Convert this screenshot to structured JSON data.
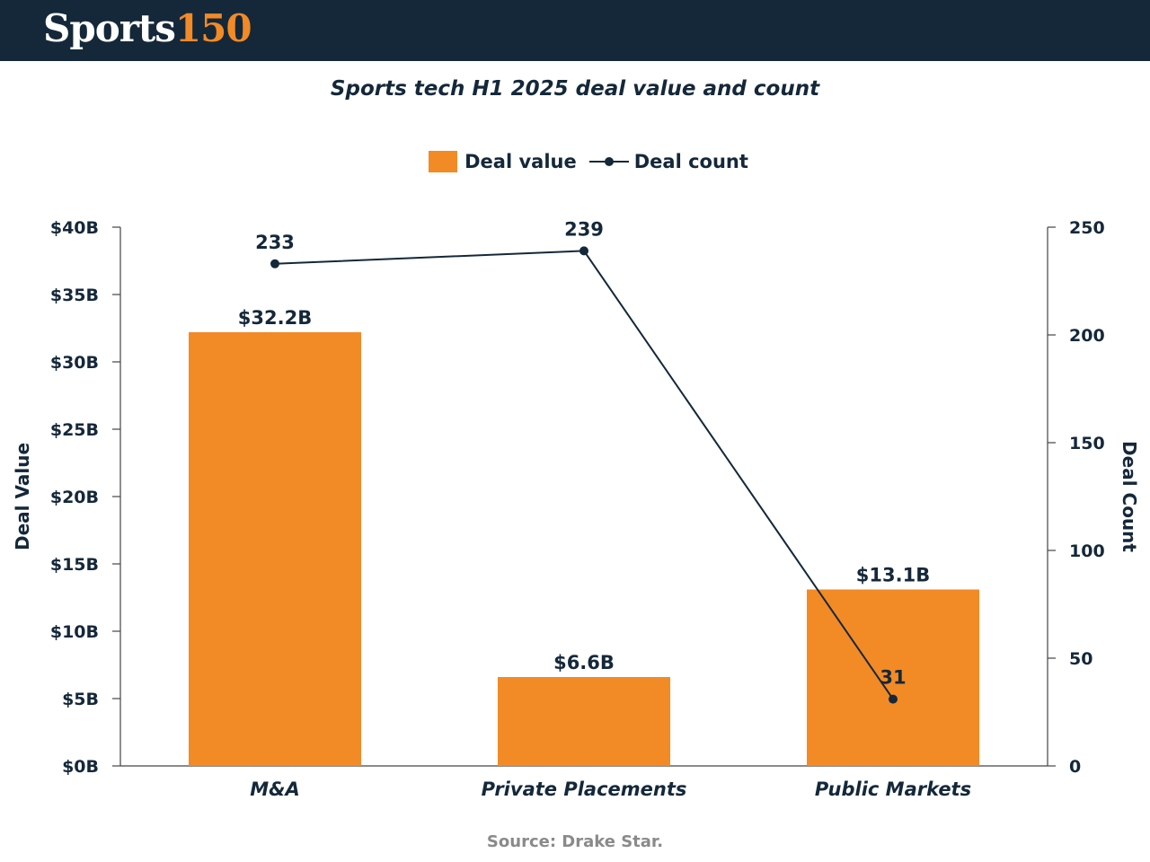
{
  "header": {
    "logo_word": "Sports",
    "logo_num": "150"
  },
  "title": "Sports tech H1 2025 deal value and count",
  "legend": {
    "bar": "Deal value",
    "line": "Deal count"
  },
  "source": "Source: Drake Star.",
  "colors": {
    "bar": "#f28a26",
    "line": "#14283a",
    "header_bg": "#14283a",
    "source_text": "#8a8a8a"
  },
  "chart_data": {
    "type": "bar",
    "categories": [
      "M&A",
      "Private Placements",
      "Public Markets"
    ],
    "series": [
      {
        "name": "Deal value",
        "type": "bar",
        "axis": "left",
        "values": [
          32.2,
          6.6,
          13.1
        ],
        "labels": [
          "$32.2B",
          "$6.6B",
          "$13.1B"
        ]
      },
      {
        "name": "Deal count",
        "type": "line",
        "axis": "right",
        "values": [
          233,
          239,
          31
        ],
        "labels": [
          "233",
          "239",
          "31"
        ]
      }
    ],
    "ylabel": "Deal Value",
    "y2label": "Deal Count",
    "ylim": [
      0,
      40
    ],
    "y2lim": [
      0,
      250
    ],
    "yticks": [
      "$0B",
      "$5B",
      "$10B",
      "$15B",
      "$20B",
      "$25B",
      "$30B",
      "$35B",
      "$40B"
    ],
    "y2ticks": [
      "0",
      "50",
      "100",
      "150",
      "200",
      "250"
    ],
    "grid": false,
    "legend_position": "top-center"
  }
}
